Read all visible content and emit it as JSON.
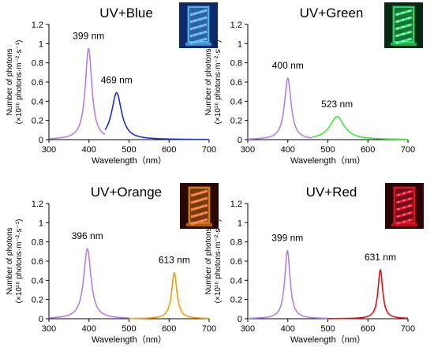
{
  "chart_data": [
    {
      "type": "line",
      "title": "UV+Blue",
      "xlabel": "Wavelength（nm）",
      "ylabel_line1": "Number of photons",
      "ylabel_line2": "(×10¹⁶ photons·m⁻²·s⁻¹)",
      "xlim": [
        300,
        700
      ],
      "ylim": [
        0,
        1.2
      ],
      "xticks": [
        "300",
        "400",
        "500",
        "600",
        "700"
      ],
      "yticks": [
        "0",
        "0.2",
        "0.4",
        "0.6",
        "0.8",
        "1",
        "1.2"
      ],
      "photo": "led-lamp-blue-photo",
      "series": [
        {
          "peak_nm": 399,
          "peak_value": 0.95,
          "width": 10,
          "color": "#b47fe8",
          "label": "399 nm",
          "start_nm": 300,
          "end_nm": 440
        },
        {
          "peak_nm": 469,
          "peak_value": 0.49,
          "width": 15,
          "color": "#1a2fd0",
          "label": "469 nm",
          "start_nm": 440,
          "end_nm": 700
        }
      ]
    },
    {
      "type": "line",
      "title": "UV+Green",
      "xlabel": "Wavelength（nm）",
      "ylabel_line1": "Number of photons",
      "ylabel_line2": "(×10¹⁶ photons·m⁻²·s⁻¹)",
      "xlim": [
        300,
        700
      ],
      "ylim": [
        0,
        1.2
      ],
      "xticks": [
        "300",
        "400",
        "500",
        "600",
        "700"
      ],
      "yticks": [
        "0",
        "0.2",
        "0.4",
        "0.6",
        "0.8",
        "1",
        "1.2"
      ],
      "photo": "led-lamp-green-photo",
      "series": [
        {
          "peak_nm": 400,
          "peak_value": 0.64,
          "width": 10,
          "color": "#b47fe8",
          "label": "400 nm",
          "start_nm": 300,
          "end_nm": 460
        },
        {
          "peak_nm": 523,
          "peak_value": 0.24,
          "width": 22,
          "color": "#3fe83a",
          "label": "523 nm",
          "start_nm": 460,
          "end_nm": 700
        }
      ]
    },
    {
      "type": "line",
      "title": "UV+Orange",
      "xlabel": "Wavelength（nm）",
      "ylabel_line1": "Number of photons",
      "ylabel_line2": "(×10¹⁶ photons·m⁻²·s⁻¹)",
      "xlim": [
        300,
        700
      ],
      "ylim": [
        0,
        1.2
      ],
      "xticks": [
        "300",
        "400",
        "500",
        "600",
        "700"
      ],
      "yticks": [
        "0",
        "0.2",
        "0.4",
        "0.6",
        "0.8",
        "1",
        "1.2"
      ],
      "photo": "led-lamp-orange-photo",
      "series": [
        {
          "peak_nm": 396,
          "peak_value": 0.73,
          "width": 11,
          "color": "#b47fe8",
          "label": "396 nm",
          "start_nm": 300,
          "end_nm": 500
        },
        {
          "peak_nm": 613,
          "peak_value": 0.48,
          "width": 8,
          "color": "#f0a000",
          "label": "613 nm",
          "start_nm": 500,
          "end_nm": 700
        }
      ]
    },
    {
      "type": "line",
      "title": "UV+Red",
      "xlabel": "Wavelength（nm）",
      "ylabel_line1": "Number of photons",
      "ylabel_line2": "(×10¹⁶ photons·m⁻²·s⁻¹)",
      "xlim": [
        300,
        700
      ],
      "ylim": [
        0,
        1.2
      ],
      "xticks": [
        "300",
        "400",
        "500",
        "600",
        "700"
      ],
      "yticks": [
        "0",
        "0.2",
        "0.4",
        "0.6",
        "0.8",
        "1",
        "1.2"
      ],
      "photo": "led-lamp-red-photo",
      "series": [
        {
          "peak_nm": 399,
          "peak_value": 0.71,
          "width": 8,
          "color": "#b47fe8",
          "label": "399 nm",
          "start_nm": 300,
          "end_nm": 500
        },
        {
          "peak_nm": 631,
          "peak_value": 0.51,
          "width": 7,
          "color": "#e01010",
          "label": "631 nm",
          "start_nm": 500,
          "end_nm": 700
        }
      ]
    }
  ],
  "photo_colors": {
    "blue": {
      "bg": "#0d2a6e",
      "glow": "#5fd4ff",
      "dot": "#d070ff"
    },
    "green": {
      "bg": "#052a12",
      "glow": "#36ff7a",
      "dot": "#e6ffe6"
    },
    "orange": {
      "bg": "#2a0806",
      "glow": "#ff9a20",
      "dot": "#ff5ac0"
    },
    "red": {
      "bg": "#2a0406",
      "glow": "#ff2030",
      "dot": "#ff70d0"
    }
  }
}
